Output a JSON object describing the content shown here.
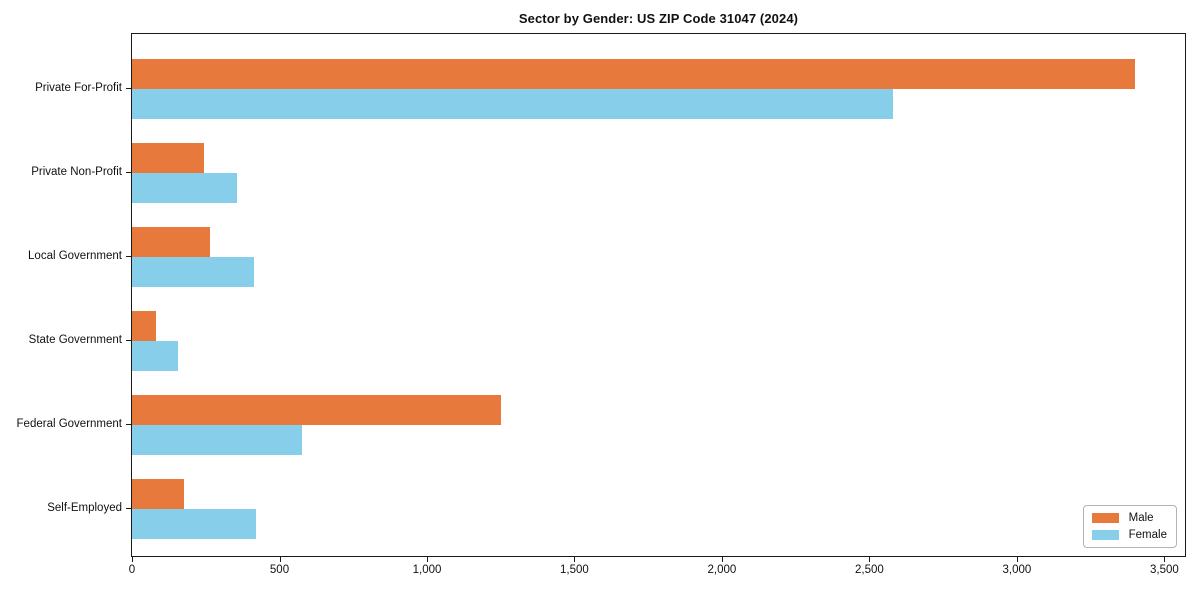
{
  "title": "Sector by Gender: US ZIP Code 31047 (2024)",
  "chart_data": {
    "type": "bar",
    "orientation": "horizontal",
    "title": "Sector by Gender: US ZIP Code 31047 (2024)",
    "categories": [
      "Private For-Profit",
      "Private Non-Profit",
      "Local Government",
      "State Government",
      "Federal Government",
      "Self-Employed"
    ],
    "series": [
      {
        "name": "Male",
        "color": "#E8793D",
        "values": [
          3400,
          245,
          265,
          80,
          1250,
          175
        ]
      },
      {
        "name": "Female",
        "color": "#87CEEB",
        "values": [
          2580,
          355,
          415,
          155,
          575,
          420
        ]
      }
    ],
    "xlabel": "",
    "ylabel": "",
    "xlim": [
      0,
      3570
    ],
    "xticks": [
      0,
      500,
      1000,
      1500,
      2000,
      2500,
      3000,
      3500
    ],
    "xtick_labels": [
      "0",
      "500",
      "1,000",
      "1,500",
      "2,000",
      "2,500",
      "3,000",
      "3,500"
    ],
    "grid": false,
    "legend_position": "lower right",
    "background_color": "#ffffff",
    "spine_color": "#1a1a1a"
  }
}
